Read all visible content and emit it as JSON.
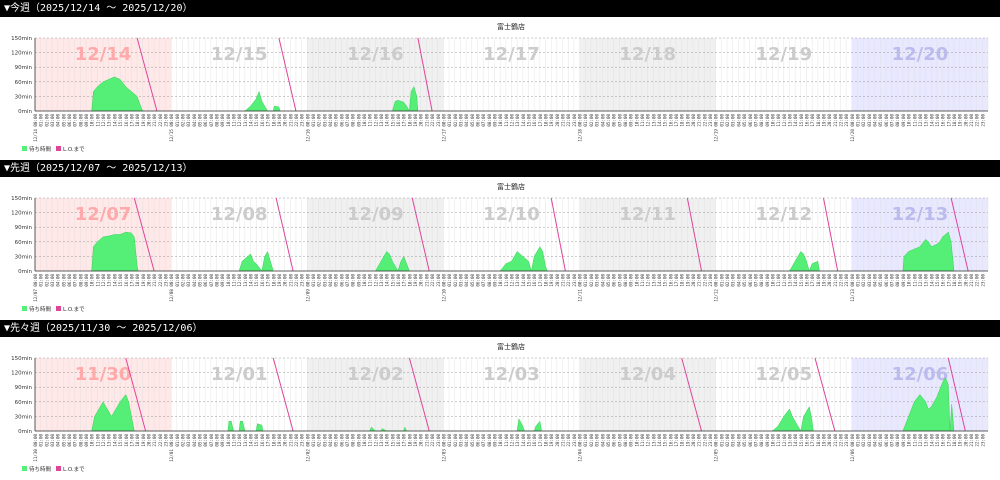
{
  "sections": [
    {
      "header": "▼今週（2025/12/14 ～ 2025/12/20）"
    },
    {
      "header": "▼先週（2025/12/07 ～ 2025/12/13）"
    },
    {
      "header": "▼先々週（2025/11/30 ～ 2025/12/06）"
    }
  ],
  "colors": {
    "wait": "#55ee77",
    "lo": "#e0449a",
    "sun_bg": "#ffe8e8",
    "sat_bg": "#e8e8ff",
    "alt_bg": "#f0f0f0",
    "sun_label": "#ffaaaa",
    "sat_label": "#bbbbee",
    "day_label": "#cccccc"
  },
  "chart_data": [
    {
      "type": "area",
      "title": "富士鶴店",
      "y_unit": "min",
      "yticks": [
        "0min",
        "30min",
        "60min",
        "90min",
        "120min",
        "150min"
      ],
      "ylim": [
        0,
        150
      ],
      "legend": [
        "待ち時間",
        "L.O.まで"
      ],
      "days": [
        {
          "label": "12/14",
          "date": "12/14",
          "kind": "sun",
          "lo": [
            18,
            21.5
          ],
          "wait": [
            [
              10,
              0
            ],
            [
              10.3,
              40
            ],
            [
              11,
              50
            ],
            [
              12,
              60
            ],
            [
              13,
              65
            ],
            [
              14,
              70
            ],
            [
              15,
              65
            ],
            [
              16,
              50
            ],
            [
              17,
              40
            ],
            [
              18,
              30
            ],
            [
              18.8,
              5
            ],
            [
              19,
              0
            ]
          ]
        },
        {
          "label": "12/15",
          "date": "12/15",
          "kind": "weekday",
          "lo": [
            19,
            22
          ],
          "wait": [
            [
              13,
              0
            ],
            [
              14,
              10
            ],
            [
              15,
              25
            ],
            [
              15.5,
              40
            ],
            [
              16,
              20
            ],
            [
              16.5,
              10
            ],
            [
              17,
              0
            ],
            [
              18,
              0
            ],
            [
              18.2,
              10
            ],
            [
              19,
              8
            ],
            [
              19.2,
              0
            ]
          ]
        },
        {
          "label": "12/16",
          "date": "12/16",
          "kind": "weekday",
          "lo": [
            19.5,
            22
          ],
          "wait": [
            [
              15,
              0
            ],
            [
              15.5,
              20
            ],
            [
              16,
              22
            ],
            [
              17,
              18
            ],
            [
              17.5,
              10
            ],
            [
              18,
              0
            ],
            [
              18.3,
              40
            ],
            [
              18.8,
              50
            ],
            [
              19.3,
              30
            ],
            [
              19.5,
              0
            ]
          ]
        },
        {
          "label": "12/17",
          "date": "12/17",
          "kind": "weekday",
          "lo": null,
          "wait": []
        },
        {
          "label": "12/18",
          "date": "12/18",
          "kind": "weekday",
          "lo": null,
          "wait": []
        },
        {
          "label": "12/19",
          "date": "12/19",
          "kind": "weekday",
          "lo": null,
          "wait": []
        },
        {
          "label": "12/20",
          "date": "12/20",
          "kind": "sat",
          "lo": null,
          "wait": []
        }
      ]
    },
    {
      "type": "area",
      "title": "富士鶴店",
      "y_unit": "min",
      "yticks": [
        "0min",
        "30min",
        "60min",
        "90min",
        "120min",
        "150min"
      ],
      "ylim": [
        0,
        150
      ],
      "legend": [
        "待ち時間",
        "L.O.まで"
      ],
      "days": [
        {
          "label": "12/07",
          "date": "12/07",
          "kind": "sun",
          "lo": [
            17.5,
            21
          ],
          "wait": [
            [
              10,
              0
            ],
            [
              10.3,
              50
            ],
            [
              11,
              60
            ],
            [
              12,
              70
            ],
            [
              13,
              72
            ],
            [
              14,
              75
            ],
            [
              15,
              75
            ],
            [
              16,
              80
            ],
            [
              17,
              78
            ],
            [
              17.5,
              70
            ],
            [
              18,
              10
            ],
            [
              18.2,
              0
            ]
          ]
        },
        {
          "label": "12/08",
          "date": "12/08",
          "kind": "weekday",
          "lo": [
            18.5,
            21.5
          ],
          "wait": [
            [
              12,
              0
            ],
            [
              12.5,
              20
            ],
            [
              13,
              25
            ],
            [
              14,
              35
            ],
            [
              14.5,
              20
            ],
            [
              15,
              15
            ],
            [
              16,
              0
            ],
            [
              16.5,
              30
            ],
            [
              17,
              40
            ],
            [
              17.5,
              20
            ],
            [
              18,
              0
            ]
          ]
        },
        {
          "label": "12/09",
          "date": "12/09",
          "kind": "weekday",
          "lo": [
            18.5,
            21.5
          ],
          "wait": [
            [
              12,
              0
            ],
            [
              13,
              20
            ],
            [
              14,
              40
            ],
            [
              14.5,
              35
            ],
            [
              15,
              20
            ],
            [
              15.5,
              10
            ],
            [
              16,
              0
            ],
            [
              16.5,
              20
            ],
            [
              17,
              30
            ],
            [
              17.5,
              15
            ],
            [
              18,
              0
            ]
          ]
        },
        {
          "label": "12/10",
          "date": "12/10",
          "kind": "weekday",
          "lo": [
            19,
            21.5
          ],
          "wait": [
            [
              10,
              0
            ],
            [
              11,
              15
            ],
            [
              12,
              20
            ],
            [
              13,
              40
            ],
            [
              14,
              30
            ],
            [
              15,
              20
            ],
            [
              15.5,
              0
            ],
            [
              16,
              30
            ],
            [
              17,
              50
            ],
            [
              17.5,
              40
            ],
            [
              18,
              10
            ],
            [
              18.3,
              0
            ]
          ]
        },
        {
          "label": "12/11",
          "date": "12/11",
          "kind": "weekday",
          "lo": [
            19,
            21.5
          ],
          "wait": []
        },
        {
          "label": "12/12",
          "date": "12/12",
          "kind": "weekday",
          "lo": [
            19,
            21.5
          ],
          "wait": [
            [
              13,
              0
            ],
            [
              14,
              20
            ],
            [
              15,
              40
            ],
            [
              15.5,
              35
            ],
            [
              16,
              20
            ],
            [
              16.5,
              0
            ],
            [
              17,
              15
            ],
            [
              18,
              20
            ],
            [
              18.3,
              0
            ]
          ]
        },
        {
          "label": "12/13",
          "date": "12/13",
          "kind": "sat",
          "lo": [
            17.5,
            20.5
          ],
          "wait": [
            [
              9,
              0
            ],
            [
              9.2,
              30
            ],
            [
              10,
              40
            ],
            [
              11,
              45
            ],
            [
              12,
              50
            ],
            [
              13,
              65
            ],
            [
              13.5,
              60
            ],
            [
              14,
              50
            ],
            [
              15,
              55
            ],
            [
              15.5,
              60
            ],
            [
              16,
              70
            ],
            [
              17,
              80
            ],
            [
              17.5,
              60
            ],
            [
              18,
              0
            ]
          ]
        }
      ]
    },
    {
      "type": "area",
      "title": "富士鶴店",
      "y_unit": "min",
      "yticks": [
        "0min",
        "30min",
        "60min",
        "90min",
        "120min",
        "150min"
      ],
      "ylim": [
        0,
        150
      ],
      "legend": [
        "待ち時間",
        "L.O.まで"
      ],
      "days": [
        {
          "label": "11/30",
          "date": "11/30",
          "kind": "sun",
          "lo": [
            16,
            19.5
          ],
          "wait": [
            [
              10,
              0
            ],
            [
              10.5,
              30
            ],
            [
              11,
              40
            ],
            [
              12,
              60
            ],
            [
              12.5,
              50
            ],
            [
              13,
              40
            ],
            [
              13.5,
              30
            ],
            [
              14,
              40
            ],
            [
              15,
              60
            ],
            [
              16,
              75
            ],
            [
              16.5,
              60
            ],
            [
              17,
              30
            ],
            [
              17.5,
              0
            ]
          ]
        },
        {
          "label": "12/01",
          "date": "12/01",
          "kind": "weekday",
          "lo": [
            18,
            21.5
          ],
          "wait": [
            [
              10,
              0
            ],
            [
              10.2,
              20
            ],
            [
              10.6,
              20
            ],
            [
              11,
              0
            ],
            [
              12,
              0
            ],
            [
              12.2,
              20
            ],
            [
              12.6,
              20
            ],
            [
              13,
              0
            ],
            [
              15,
              0
            ],
            [
              15.2,
              15
            ],
            [
              16,
              12
            ],
            [
              16.2,
              0
            ]
          ]
        },
        {
          "label": "12/02",
          "date": "12/02",
          "kind": "weekday",
          "lo": [
            18,
            21.5
          ],
          "wait": [
            [
              11,
              0
            ],
            [
              11.3,
              8
            ],
            [
              12,
              0
            ],
            [
              13,
              0
            ],
            [
              13.2,
              5
            ],
            [
              14,
              0
            ],
            [
              17,
              0
            ],
            [
              17.2,
              8
            ],
            [
              17.5,
              0
            ]
          ]
        },
        {
          "label": "12/03",
          "date": "12/03",
          "kind": "weekday",
          "lo": null,
          "wait": [
            [
              13,
              0
            ],
            [
              13.3,
              25
            ],
            [
              14,
              10
            ],
            [
              14.3,
              0
            ],
            [
              16,
              0
            ],
            [
              16.3,
              10
            ],
            [
              17,
              20
            ],
            [
              17.3,
              0
            ]
          ]
        },
        {
          "label": "12/04",
          "date": "12/04",
          "kind": "weekday",
          "lo": [
            18,
            21.5
          ],
          "wait": []
        },
        {
          "label": "12/05",
          "date": "12/05",
          "kind": "weekday",
          "lo": [
            17.5,
            21
          ],
          "wait": [
            [
              10,
              0
            ],
            [
              11,
              10
            ],
            [
              12,
              30
            ],
            [
              13,
              45
            ],
            [
              13.5,
              30
            ],
            [
              14,
              20
            ],
            [
              15,
              0
            ],
            [
              15.5,
              30
            ],
            [
              16.5,
              50
            ],
            [
              17,
              20
            ],
            [
              17.2,
              0
            ]
          ]
        },
        {
          "label": "12/06",
          "date": "12/06",
          "kind": "sat",
          "lo": [
            17,
            20
          ],
          "wait": [
            [
              9,
              0
            ],
            [
              10,
              30
            ],
            [
              11,
              60
            ],
            [
              12,
              75
            ],
            [
              13,
              60
            ],
            [
              13.5,
              45
            ],
            [
              14,
              50
            ],
            [
              15,
              70
            ],
            [
              16,
              100
            ],
            [
              16.5,
              110
            ],
            [
              17,
              95
            ],
            [
              17.3,
              0
            ],
            [
              17.6,
              55
            ],
            [
              18,
              0
            ]
          ]
        }
      ]
    }
  ]
}
